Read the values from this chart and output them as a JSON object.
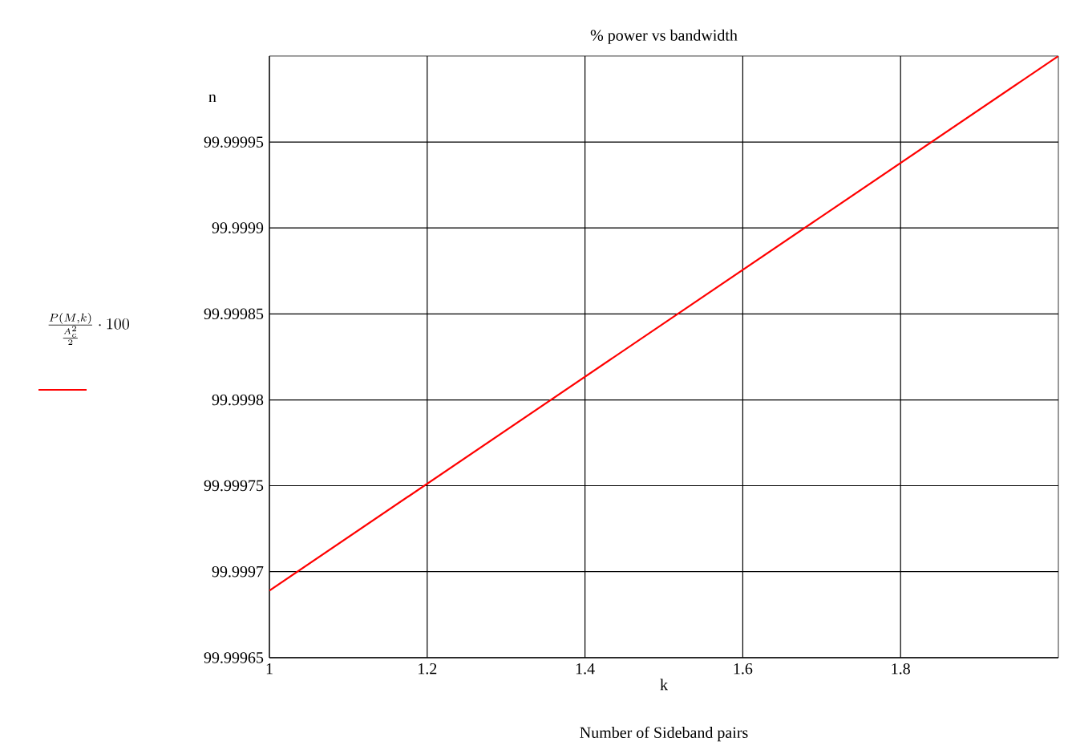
{
  "chart_data": {
    "type": "line",
    "title": "% power vs bandwidth",
    "xlabel": "k",
    "annotations": [
      "n",
      "Number of Sideband pairs"
    ],
    "x": [
      1,
      2
    ],
    "series": [
      {
        "name": "\\frac{P(M,k)}{\\frac{A_c^{2}}{2}}\\cdot 100",
        "color": "#ff0000",
        "values": [
          99.999689,
          100.0
        ]
      }
    ],
    "xlim": [
      1,
      2
    ],
    "xticks": [
      1,
      1.2,
      1.4,
      1.6,
      1.8
    ],
    "ylim": [
      99.99965,
      100.0
    ],
    "yticks": [
      99.99965,
      99.9997,
      99.99975,
      99.9998,
      99.99985,
      99.9999,
      99.99995
    ],
    "grid": true,
    "legend": "left",
    "marker": "none",
    "line_style": "solid"
  }
}
